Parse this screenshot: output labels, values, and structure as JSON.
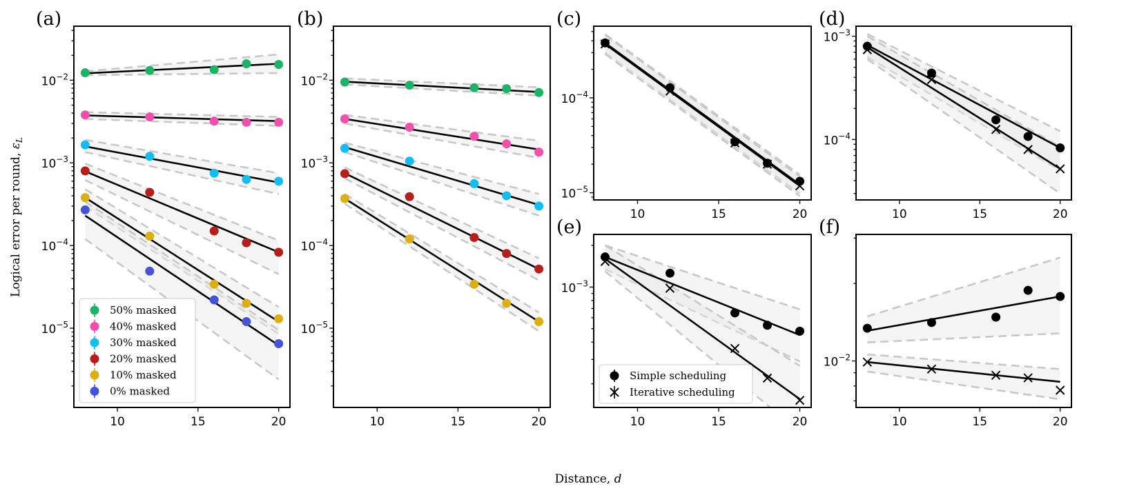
{
  "figure": {
    "xlabel": "Distance, ",
    "xlabel_italic": "d",
    "ylabel": "Logical error per round, ",
    "ylabel_italic": "ε",
    "ylabel_sub": "L",
    "x_ticks": [
      10,
      15,
      20
    ]
  },
  "colors": {
    "50% masked": "#1db365",
    "40% masked": "#f04fae",
    "30% masked": "#13bdf2",
    "20% masked": "#b61e19",
    "10% masked": "#dcb012",
    "0% masked": "#4354d6",
    "scheduling": "#000000"
  },
  "chart_data": [
    {
      "panel": "(a)",
      "type": "scatter",
      "xlabel": "Distance, d",
      "ylabel": "Logical error per round, ε_L",
      "y_scale": "log",
      "xlim": [
        7.3,
        20.7
      ],
      "ylim": [
        1.1e-06,
        0.045
      ],
      "y_ticks": [
        {
          "value": 1e-05,
          "label": "10^-5"
        },
        {
          "value": 0.0001,
          "label": "10^-4"
        },
        {
          "value": 0.001,
          "label": "10^-3"
        },
        {
          "value": 0.01,
          "label": "10^-2"
        }
      ],
      "legend": {
        "placement": "lower-left",
        "entries": [
          "50% masked",
          "40% masked",
          "30% masked",
          "20% masked",
          "10% masked",
          "0% masked"
        ]
      },
      "series": [
        {
          "name": "50% masked",
          "marker": "circle",
          "x": [
            8,
            12,
            16,
            18,
            20
          ],
          "y": [
            0.0123,
            0.0131,
            0.0134,
            0.0158,
            0.0155
          ],
          "fit": [
            0.0121,
            0.0158
          ],
          "band_lo": [
            0.0115,
            0.0122
          ],
          "band_hi": [
            0.0128,
            0.0205
          ]
        },
        {
          "name": "40% masked",
          "marker": "circle",
          "x": [
            8,
            12,
            16,
            18,
            20
          ],
          "y": [
            0.0038,
            0.0036,
            0.0032,
            0.0031,
            0.0031
          ],
          "fit": [
            0.00375,
            0.0032
          ],
          "band_lo": [
            0.0034,
            0.0028
          ],
          "band_hi": [
            0.0041,
            0.0036
          ]
        },
        {
          "name": "30% masked",
          "marker": "circle",
          "x": [
            8,
            12,
            16,
            18,
            20
          ],
          "y": [
            0.00165,
            0.0012,
            0.00075,
            0.00063,
            0.0006
          ],
          "fit": [
            0.00158,
            0.00058
          ],
          "band_lo": [
            0.00135,
            0.00042
          ],
          "band_hi": [
            0.0019,
            0.00075
          ]
        },
        {
          "name": "20% masked",
          "marker": "circle",
          "x": [
            8,
            12,
            16,
            18,
            20
          ],
          "y": [
            0.0008,
            0.00044,
            0.00015,
            0.000108,
            8.3e-05
          ],
          "fit": [
            0.00079,
            8.3e-05
          ],
          "band_lo": [
            0.00062,
            4.5e-05
          ],
          "band_hi": [
            0.00098,
            0.000115
          ]
        },
        {
          "name": "10% masked",
          "marker": "circle",
          "x": [
            8,
            12,
            16,
            18,
            20
          ],
          "y": [
            0.00038,
            0.00013,
            3.4e-05,
            2e-05,
            1.3e-05
          ],
          "fit": [
            0.00038,
            1.2e-05
          ],
          "band_lo": [
            0.0003,
            8.5e-06
          ],
          "band_hi": [
            0.00048,
            1.8e-05
          ]
        },
        {
          "name": "0% masked",
          "marker": "circle",
          "x": [
            8,
            12,
            16,
            18,
            20
          ],
          "y": [
            0.00027,
            4.9e-05,
            2.2e-05,
            1.2e-05,
            6.5e-06
          ],
          "fit": [
            0.00023,
            6.2e-06
          ],
          "band_lo": [
            0.00012,
            2.4e-06
          ],
          "band_hi": [
            0.00034,
            9.5e-06
          ]
        }
      ]
    },
    {
      "panel": "(b)",
      "type": "scatter",
      "y_scale": "log",
      "xlim": [
        7.3,
        20.7
      ],
      "ylim": [
        1.1e-06,
        0.045
      ],
      "y_ticks": [
        {
          "value": 1e-05,
          "label": "10^-5"
        },
        {
          "value": 0.0001,
          "label": "10^-4"
        },
        {
          "value": 0.001,
          "label": "10^-3"
        },
        {
          "value": 0.01,
          "label": "10^-2"
        }
      ],
      "series": [
        {
          "name": "50% masked",
          "marker": "circle",
          "x": [
            8,
            12,
            16,
            18,
            20
          ],
          "y": [
            0.0095,
            0.0087,
            0.0081,
            0.0079,
            0.0071
          ],
          "fit": [
            0.0096,
            0.0072
          ],
          "band_lo": [
            0.0089,
            0.0065
          ],
          "band_hi": [
            0.0105,
            0.0082
          ]
        },
        {
          "name": "40% masked",
          "marker": "circle",
          "x": [
            8,
            12,
            16,
            18,
            20
          ],
          "y": [
            0.0034,
            0.0027,
            0.0021,
            0.0017,
            0.00135
          ],
          "fit": [
            0.0034,
            0.00145
          ],
          "band_lo": [
            0.003,
            0.00115
          ],
          "band_hi": [
            0.0038,
            0.00185
          ]
        },
        {
          "name": "30% masked",
          "marker": "circle",
          "x": [
            8,
            12,
            16,
            18,
            20
          ],
          "y": [
            0.0015,
            0.00105,
            0.00056,
            0.0004,
            0.0003
          ],
          "fit": [
            0.00155,
            0.00031
          ],
          "band_lo": [
            0.00135,
            0.00023
          ],
          "band_hi": [
            0.00175,
            0.00042
          ]
        },
        {
          "name": "20% masked",
          "marker": "circle",
          "x": [
            8,
            12,
            16,
            18,
            20
          ],
          "y": [
            0.00074,
            0.00039,
            0.000125,
            8e-05,
            5.2e-05
          ],
          "fit": [
            0.00075,
            5.2e-05
          ],
          "band_lo": [
            0.00065,
            3.8e-05
          ],
          "band_hi": [
            0.00088,
            7e-05
          ]
        },
        {
          "name": "10% masked",
          "marker": "circle",
          "x": [
            8,
            12,
            16,
            18,
            20
          ],
          "y": [
            0.00037,
            0.00012,
            3.4e-05,
            2e-05,
            1.2e-05
          ],
          "fit": [
            0.00037,
            1.2e-05
          ],
          "band_lo": [
            0.00032,
            9.2e-06
          ],
          "band_hi": [
            0.00042,
            1.55e-05
          ]
        }
      ]
    },
    {
      "panel": "(c)",
      "type": "scatter",
      "y_scale": "log",
      "xlim": [
        7.3,
        20.7
      ],
      "ylim": [
        8.4e-06,
        0.00057
      ],
      "y_ticks": [
        {
          "value": 1e-05,
          "label": "10^-5"
        },
        {
          "value": 0.0001,
          "label": "10^-4"
        }
      ],
      "series": [
        {
          "name": "Simple scheduling",
          "marker": "circle",
          "x": [
            8,
            12,
            16,
            18,
            20
          ],
          "y": [
            0.00038,
            0.000128,
            3.45e-05,
            2.05e-05,
            1.32e-05
          ],
          "fit": [
            0.00038,
            1.22e-05
          ],
          "band_lo": [
            0.0003,
            9.8e-06
          ],
          "band_hi": [
            0.00047,
            1.55e-05
          ]
        },
        {
          "name": "Iterative scheduling",
          "marker": "x",
          "x": [
            8,
            12,
            16,
            18,
            20
          ],
          "y": [
            0.00037,
            0.000118,
            3.35e-05,
            2e-05,
            1.18e-05
          ],
          "fit": [
            0.00037,
            1.18e-05
          ],
          "band_lo": [
            0.00029,
            9.2e-06
          ],
          "band_hi": [
            0.00046,
            1.48e-05
          ]
        }
      ]
    },
    {
      "panel": "(d)",
      "type": "scatter",
      "y_scale": "log",
      "xlim": [
        7.3,
        20.7
      ],
      "ylim": [
        2.6e-05,
        0.00125
      ],
      "y_ticks": [
        {
          "value": 0.0001,
          "label": "10^-4"
        },
        {
          "value": 0.001,
          "label": "10^-3"
        }
      ],
      "series": [
        {
          "name": "Simple scheduling",
          "marker": "circle",
          "x": [
            8,
            12,
            16,
            18,
            20
          ],
          "y": [
            0.0008,
            0.00044,
            0.000155,
            0.000107,
            8.3e-05
          ],
          "fit": [
            0.00082,
            8.3e-05
          ],
          "band_lo": [
            0.00063,
            5e-05
          ],
          "band_hi": [
            0.00105,
            0.00012
          ]
        },
        {
          "name": "Iterative scheduling",
          "marker": "x",
          "x": [
            8,
            12,
            16,
            18,
            20
          ],
          "y": [
            0.00074,
            0.00038,
            0.000125,
            8e-05,
            5.2e-05
          ],
          "fit": [
            0.00078,
            5.2e-05
          ],
          "band_lo": [
            0.0006,
            3e-05
          ],
          "band_hi": [
            0.001,
            8.5e-05
          ]
        }
      ]
    },
    {
      "panel": "(e)",
      "type": "scatter",
      "y_scale": "log",
      "xlim": [
        7.3,
        20.7
      ],
      "ylim": [
        0.000135,
        0.0024
      ],
      "y_ticks": [
        {
          "value": 0.001,
          "label": "10^-3"
        }
      ],
      "legend": {
        "placement": "lower-left",
        "entries": [
          "Simple scheduling",
          "Iterative scheduling"
        ]
      },
      "series": [
        {
          "name": "Simple scheduling",
          "marker": "circle",
          "x": [
            8,
            12,
            16,
            18,
            20
          ],
          "y": [
            0.00165,
            0.00126,
            0.00065,
            0.00053,
            0.00048
          ],
          "fit": [
            0.00165,
            0.00045
          ],
          "band_lo": [
            0.00135,
            0.00029
          ],
          "band_hi": [
            0.002,
            0.00069
          ]
        },
        {
          "name": "Iterative scheduling",
          "marker": "x",
          "x": [
            8,
            12,
            16,
            18,
            20
          ],
          "y": [
            0.00153,
            0.00098,
            0.00036,
            0.00022,
            0.000152
          ],
          "fit": [
            0.0016,
            0.000155
          ],
          "band_lo": [
            0.0013,
            9e-05
          ],
          "band_hi": [
            0.002,
            0.00027
          ]
        }
      ]
    },
    {
      "panel": "(f)",
      "type": "scatter",
      "y_scale": "log",
      "xlim": [
        7.3,
        20.7
      ],
      "ylim": [
        0.0066,
        0.031
      ],
      "y_ticks": [
        {
          "value": 0.01,
          "label": "10^-2"
        }
      ],
      "series": [
        {
          "name": "Simple scheduling",
          "marker": "circle",
          "x": [
            8,
            12,
            16,
            18,
            20
          ],
          "y": [
            0.0134,
            0.0141,
            0.0148,
            0.0188,
            0.0178
          ],
          "fit": [
            0.0131,
            0.0178
          ],
          "band_lo": [
            0.0118,
            0.0128
          ],
          "band_hi": [
            0.0149,
            0.0252
          ]
        },
        {
          "name": "Iterative scheduling",
          "marker": "x",
          "x": [
            8,
            12,
            16,
            18,
            20
          ],
          "y": [
            0.0099,
            0.0093,
            0.0088,
            0.0086,
            0.0077
          ],
          "fit": [
            0.0099,
            0.0083
          ],
          "band_lo": [
            0.0091,
            0.0071
          ],
          "band_hi": [
            0.0106,
            0.0093
          ]
        }
      ]
    }
  ]
}
